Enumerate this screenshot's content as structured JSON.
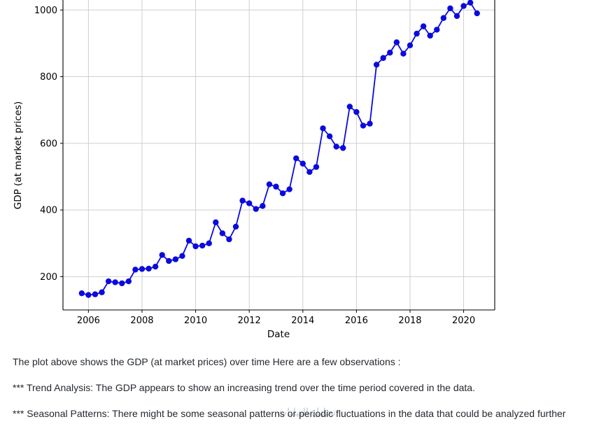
{
  "chart_data": {
    "type": "line",
    "title": "",
    "xlabel": "Date",
    "ylabel": "GDP (at market prices)",
    "line_color": "#0a0adf",
    "marker": "circle",
    "grid": true,
    "x_ticks": [
      2006,
      2008,
      2010,
      2012,
      2014,
      2016,
      2018,
      2020
    ],
    "y_ticks": [
      200,
      400,
      600,
      800,
      1000
    ],
    "xlim": [
      2005.05,
      2021.16
    ],
    "ylim": [
      100,
      1030
    ],
    "x": [
      2005.75,
      2006.0,
      2006.25,
      2006.5,
      2006.75,
      2007.0,
      2007.25,
      2007.5,
      2007.75,
      2008.0,
      2008.25,
      2008.5,
      2008.75,
      2009.0,
      2009.25,
      2009.5,
      2009.75,
      2010.0,
      2010.25,
      2010.5,
      2010.75,
      2011.0,
      2011.25,
      2011.5,
      2011.75,
      2012.0,
      2012.25,
      2012.5,
      2012.75,
      2013.0,
      2013.25,
      2013.5,
      2013.75,
      2014.0,
      2014.25,
      2014.5,
      2014.75,
      2015.0,
      2015.25,
      2015.5,
      2015.75,
      2016.0,
      2016.25,
      2016.5,
      2016.75,
      2017.0,
      2017.25,
      2017.5,
      2017.75,
      2018.0,
      2018.25,
      2018.5,
      2018.75,
      2019.0,
      2019.25,
      2019.5,
      2019.75,
      2020.0,
      2020.25,
      2020.5
    ],
    "values": [
      150,
      145,
      147,
      153,
      186,
      183,
      180,
      186,
      221,
      223,
      224,
      230,
      265,
      247,
      252,
      262,
      308,
      291,
      293,
      300,
      363,
      330,
      312,
      350,
      428,
      420,
      403,
      412,
      477,
      470,
      450,
      462,
      555,
      539,
      514,
      529,
      645,
      621,
      590,
      586,
      710,
      694,
      653,
      659,
      836,
      856,
      872,
      903,
      869,
      894,
      929,
      951,
      923,
      941,
      976,
      1005,
      982,
      1012,
      1022,
      990
    ]
  },
  "observations": {
    "intro": "The plot above shows the GDP (at market prices) over time Here are a few observations :",
    "trend": "*** Trend Analysis: The GDP appears to show an increasing trend over the time period covered in the data.",
    "seasonal": "*** Seasonal Patterns: There might be some seasonal patterns or periodic fluctuations in the data that could be analyzed further"
  },
  "watermark": "تحليل البيانات"
}
